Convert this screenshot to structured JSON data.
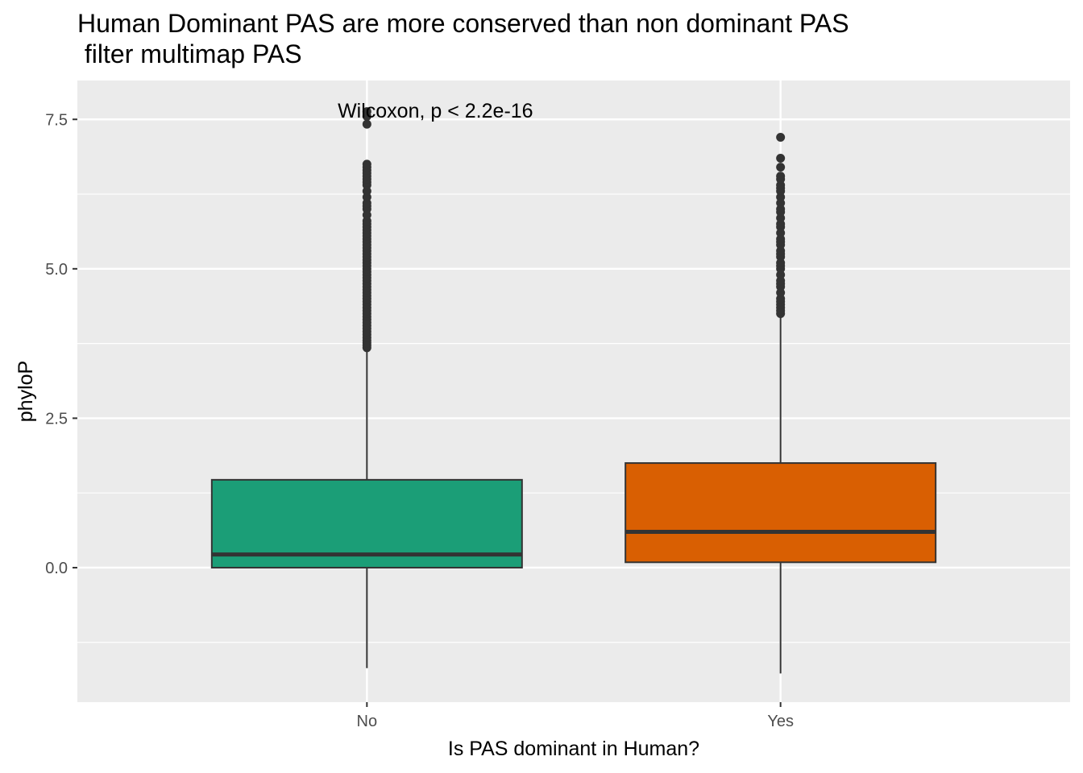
{
  "chart_data": {
    "type": "boxplot",
    "title": "Human Dominant PAS are more conserved than non dominant PAS",
    "subtitle": " filter multimap PAS",
    "xlabel": "Is PAS dominant in Human?",
    "ylabel": "phyloP",
    "ylim": [
      -2.25,
      8.15
    ],
    "yticks": [
      0.0,
      2.5,
      5.0,
      7.5
    ],
    "ytick_labels": [
      "0.0",
      "2.5",
      "5.0",
      "7.5"
    ],
    "grid": true,
    "categories": [
      "No",
      "Yes"
    ],
    "annotation": {
      "text": "Wilcoxon, p < 2.2e-16",
      "x_category": "No",
      "y": 7.65
    },
    "series": [
      {
        "category": "No",
        "color": "#1b9e77",
        "whisker_low": -1.68,
        "q1": 0.0,
        "median": 0.22,
        "q3": 1.47,
        "whisker_high": 3.66,
        "outliers": [
          3.68,
          3.72,
          3.76,
          3.8,
          3.85,
          3.9,
          3.95,
          4.0,
          4.05,
          4.1,
          4.15,
          4.2,
          4.25,
          4.3,
          4.35,
          4.4,
          4.45,
          4.5,
          4.55,
          4.6,
          4.65,
          4.7,
          4.75,
          4.8,
          4.85,
          4.9,
          4.95,
          5.0,
          5.05,
          5.1,
          5.15,
          5.2,
          5.25,
          5.3,
          5.35,
          5.4,
          5.45,
          5.5,
          5.55,
          5.6,
          5.65,
          5.7,
          5.75,
          5.8,
          5.9,
          6.0,
          6.05,
          6.1,
          6.2,
          6.3,
          6.4,
          6.45,
          6.5,
          6.55,
          6.6,
          6.65,
          6.7,
          6.75,
          7.42,
          7.55,
          7.63
        ]
      },
      {
        "category": "Yes",
        "color": "#d95f02",
        "whisker_low": -1.77,
        "q1": 0.09,
        "median": 0.6,
        "q3": 1.75,
        "whisker_high": 4.24,
        "outliers": [
          4.25,
          4.3,
          4.35,
          4.4,
          4.45,
          4.5,
          4.6,
          4.7,
          4.75,
          4.8,
          4.9,
          5.0,
          5.05,
          5.1,
          5.2,
          5.25,
          5.3,
          5.4,
          5.45,
          5.5,
          5.6,
          5.7,
          5.75,
          5.85,
          5.95,
          6.0,
          6.1,
          6.2,
          6.3,
          6.35,
          6.4,
          6.5,
          6.55,
          6.7,
          6.85,
          7.2
        ]
      }
    ]
  }
}
